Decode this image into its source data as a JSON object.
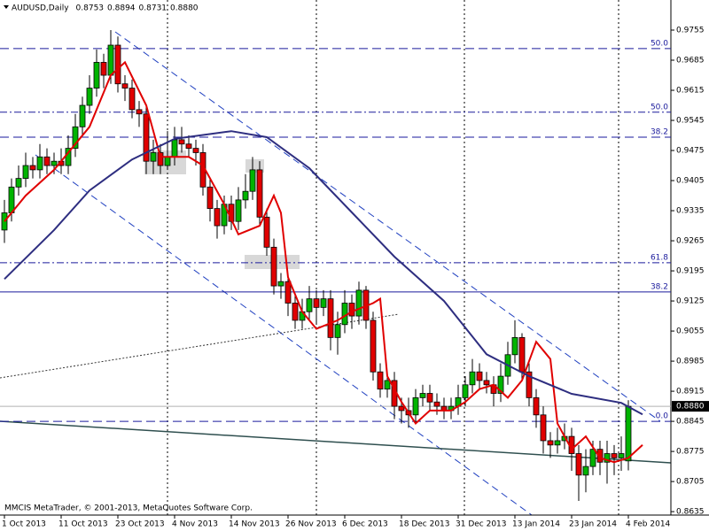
{
  "chart_data": {
    "type": "candlestick",
    "header": "AUDUSD,Daily",
    "header_values": [
      "0.8753",
      "0.8894",
      "0.8731",
      "0.8880"
    ],
    "footer": "MMCIS MetaTrader, © 2001-2013, MetaQuotes Software Corp.",
    "categories": [
      "1 Oct 2013",
      null,
      null,
      null,
      null,
      null,
      null,
      null,
      "11 Oct 2013",
      null,
      null,
      null,
      null,
      null,
      null,
      null,
      "23 Oct 2013",
      null,
      null,
      null,
      null,
      null,
      null,
      null,
      "4 Nov 2013",
      null,
      null,
      null,
      null,
      null,
      null,
      null,
      "14 Nov 2013",
      null,
      null,
      null,
      null,
      null,
      null,
      null,
      "26 Nov 2013",
      null,
      null,
      null,
      null,
      null,
      null,
      null,
      "6 Dec 2013",
      null,
      null,
      null,
      null,
      null,
      null,
      null,
      "18 Dec 2013",
      null,
      null,
      null,
      null,
      null,
      null,
      null,
      "31 Dec 2013",
      null,
      null,
      null,
      null,
      null,
      null,
      null,
      "13 Jan 2014",
      null,
      null,
      null,
      null,
      null,
      null,
      null,
      "23 Jan 2014",
      null,
      null,
      null,
      null,
      null,
      null,
      null,
      "4 Feb 2014"
    ],
    "open": [
      0.929,
      0.933,
      0.939,
      0.941,
      0.944,
      0.943,
      0.946,
      0.944,
      0.945,
      0.944,
      0.948,
      0.953,
      0.958,
      0.962,
      0.968,
      0.965,
      0.972,
      0.963,
      0.962,
      0.957,
      0.956,
      0.945,
      0.947,
      0.944,
      0.946,
      0.95,
      0.949,
      0.948,
      0.947,
      0.939,
      0.934,
      0.93,
      0.935,
      0.931,
      0.936,
      0.938,
      0.943,
      0.932,
      0.925,
      0.916,
      0.917,
      0.912,
      0.908,
      0.91,
      0.913,
      0.911,
      0.913,
      0.904,
      0.907,
      0.912,
      0.909,
      0.915,
      0.908,
      0.896,
      0.892,
      0.894,
      0.888,
      0.887,
      0.886,
      0.89,
      0.891,
      0.889,
      0.888,
      0.887,
      0.888,
      0.89,
      0.893,
      0.896,
      0.894,
      0.893,
      0.891,
      0.895,
      0.9,
      0.904,
      0.896,
      0.89,
      0.886,
      0.88,
      0.879,
      0.88,
      0.881,
      0.877,
      0.872,
      0.874,
      0.878,
      0.875,
      0.877,
      0.876,
      0.8753
    ],
    "high": [
      0.936,
      0.941,
      0.944,
      0.947,
      0.946,
      0.949,
      0.948,
      0.947,
      0.948,
      0.951,
      0.956,
      0.96,
      0.965,
      0.971,
      0.97,
      0.9755,
      0.974,
      0.965,
      0.964,
      0.959,
      0.958,
      0.95,
      0.949,
      0.952,
      0.953,
      0.953,
      0.951,
      0.95,
      0.949,
      0.941,
      0.936,
      0.937,
      0.937,
      0.939,
      0.942,
      0.946,
      0.945,
      0.934,
      0.927,
      0.919,
      0.919,
      0.914,
      0.913,
      0.916,
      0.915,
      0.915,
      0.915,
      0.91,
      0.915,
      0.914,
      0.917,
      0.916,
      0.91,
      0.898,
      0.896,
      0.896,
      0.89,
      0.89,
      0.892,
      0.893,
      0.893,
      0.891,
      0.89,
      0.89,
      0.893,
      0.895,
      0.899,
      0.898,
      0.896,
      0.895,
      0.898,
      0.903,
      0.908,
      0.905,
      0.898,
      0.892,
      0.888,
      0.882,
      0.883,
      0.884,
      0.883,
      0.879,
      0.878,
      0.88,
      0.88,
      0.88,
      0.879,
      0.881,
      0.8894
    ],
    "low": [
      0.926,
      0.931,
      0.937,
      0.939,
      0.941,
      0.941,
      0.942,
      0.942,
      0.942,
      0.942,
      0.946,
      0.951,
      0.956,
      0.96,
      0.962,
      0.963,
      0.961,
      0.959,
      0.955,
      0.953,
      0.942,
      0.942,
      0.942,
      0.943,
      0.944,
      0.947,
      0.946,
      0.944,
      0.937,
      0.931,
      0.927,
      0.928,
      0.929,
      0.929,
      0.934,
      0.936,
      0.93,
      0.923,
      0.914,
      0.913,
      0.909,
      0.906,
      0.906,
      0.908,
      0.907,
      0.909,
      0.901,
      0.9,
      0.905,
      0.906,
      0.907,
      0.906,
      0.894,
      0.89,
      0.89,
      0.885,
      0.884,
      0.883,
      0.884,
      0.888,
      0.887,
      0.886,
      0.885,
      0.885,
      0.886,
      0.888,
      0.891,
      0.892,
      0.891,
      0.888,
      0.889,
      0.893,
      0.898,
      0.894,
      0.888,
      0.883,
      0.877,
      0.876,
      0.877,
      0.878,
      0.873,
      0.866,
      0.868,
      0.872,
      0.872,
      0.87,
      0.872,
      0.873,
      0.8731
    ],
    "close": [
      0.933,
      0.939,
      0.941,
      0.944,
      0.943,
      0.946,
      0.944,
      0.945,
      0.944,
      0.948,
      0.953,
      0.958,
      0.962,
      0.968,
      0.965,
      0.972,
      0.963,
      0.962,
      0.957,
      0.956,
      0.945,
      0.947,
      0.944,
      0.946,
      0.95,
      0.949,
      0.948,
      0.947,
      0.939,
      0.934,
      0.93,
      0.935,
      0.931,
      0.936,
      0.938,
      0.943,
      0.932,
      0.925,
      0.916,
      0.917,
      0.912,
      0.908,
      0.91,
      0.913,
      0.911,
      0.913,
      0.904,
      0.907,
      0.912,
      0.909,
      0.915,
      0.908,
      0.896,
      0.892,
      0.894,
      0.888,
      0.887,
      0.886,
      0.89,
      0.891,
      0.889,
      0.888,
      0.887,
      0.888,
      0.89,
      0.893,
      0.896,
      0.894,
      0.893,
      0.891,
      0.895,
      0.9,
      0.904,
      0.896,
      0.89,
      0.886,
      0.88,
      0.879,
      0.88,
      0.881,
      0.877,
      0.872,
      0.874,
      0.878,
      0.875,
      0.877,
      0.876,
      0.877,
      0.888
    ],
    "up_color": "#00b400",
    "down_color": "#e00000",
    "indicators": [
      {
        "color": "#e00000",
        "x": [
          0,
          3,
          7,
          12,
          15,
          17,
          20,
          22,
          26,
          28,
          31,
          33,
          36,
          38,
          39,
          40,
          42,
          44,
          47,
          49,
          52,
          53,
          54,
          56,
          58,
          60,
          63,
          65,
          67,
          69,
          71,
          73,
          75,
          77,
          78,
          80,
          82,
          84,
          86,
          88,
          90
        ],
        "values": [
          0.931,
          0.937,
          0.943,
          0.953,
          0.965,
          0.968,
          0.958,
          0.946,
          0.946,
          0.944,
          0.935,
          0.928,
          0.93,
          0.937,
          0.933,
          0.918,
          0.91,
          0.906,
          0.908,
          0.91,
          0.912,
          0.913,
          0.895,
          0.889,
          0.884,
          0.887,
          0.887,
          0.889,
          0.892,
          0.893,
          0.89,
          0.894,
          0.903,
          0.899,
          0.884,
          0.878,
          0.881,
          0.876,
          0.875,
          0.876,
          0.879
        ]
      },
      {
        "color": "#2e2e80",
        "x": [
          0,
          7,
          12,
          18,
          24,
          32,
          37,
          43,
          49,
          55,
          62,
          68,
          74,
          80,
          87,
          90
        ],
        "values": [
          0.9176,
          0.929,
          0.9382,
          0.9454,
          0.9502,
          0.952,
          0.9506,
          0.9434,
          0.9331,
          0.9228,
          0.9125,
          0.9001,
          0.895,
          0.8909,
          0.8888,
          0.8861
        ]
      }
    ],
    "levels": [
      {
        "value": 0.9712,
        "label": "50.0",
        "style": "dashed"
      },
      {
        "value": 0.9564,
        "label": "50.0",
        "style": "dashdot"
      },
      {
        "value": 0.9506,
        "label": "38.2",
        "style": "dashed"
      },
      {
        "value": 0.9214,
        "label": "61.8",
        "style": "dashdot"
      },
      {
        "value": 0.9146,
        "label": "38.2",
        "style": "solid"
      },
      {
        "value": 0.8845,
        "label": "0.0",
        "style": "dashed"
      }
    ],
    "current_price": {
      "value": 0.888,
      "label": "0.8880"
    },
    "xlim": [
      -0.625,
      94
    ],
    "ylim": [
      0.8627,
      0.9825
    ],
    "yticks": [
      0.9755,
      0.9685,
      0.9615,
      0.9545,
      0.9475,
      0.9405,
      0.9335,
      0.9265,
      0.9195,
      0.9125,
      0.9055,
      0.8985,
      0.8915,
      0.8845,
      0.8775,
      0.8705,
      0.8635
    ]
  }
}
